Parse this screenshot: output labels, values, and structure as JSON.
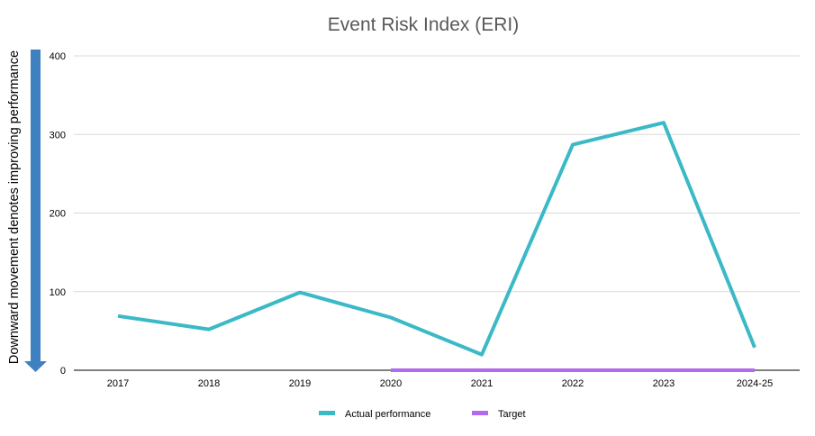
{
  "chart_data": {
    "type": "line",
    "title": "Event Risk Index (ERI)",
    "side_label": "Downward movement denotes improving performance",
    "categories": [
      "2017",
      "2018",
      "2019",
      "2020",
      "2021",
      "2022",
      "2023",
      "2024-25"
    ],
    "ylim": [
      0,
      400
    ],
    "yticks": [
      0,
      100,
      200,
      300,
      400
    ],
    "grid": true,
    "legend_position": "bottom",
    "series": [
      {
        "name": "Actual performance",
        "color": "#3bb9c6",
        "values": [
          69,
          52,
          99,
          67,
          20,
          287,
          315,
          29
        ]
      },
      {
        "name": "Target",
        "color": "#b06cf0",
        "values": [
          null,
          null,
          null,
          0,
          0,
          0,
          0,
          0
        ]
      }
    ],
    "arrow_color": "#3f80c1",
    "title_color": "#595959",
    "grid_color": "#d9d9d9",
    "axis_color": "#000000"
  }
}
